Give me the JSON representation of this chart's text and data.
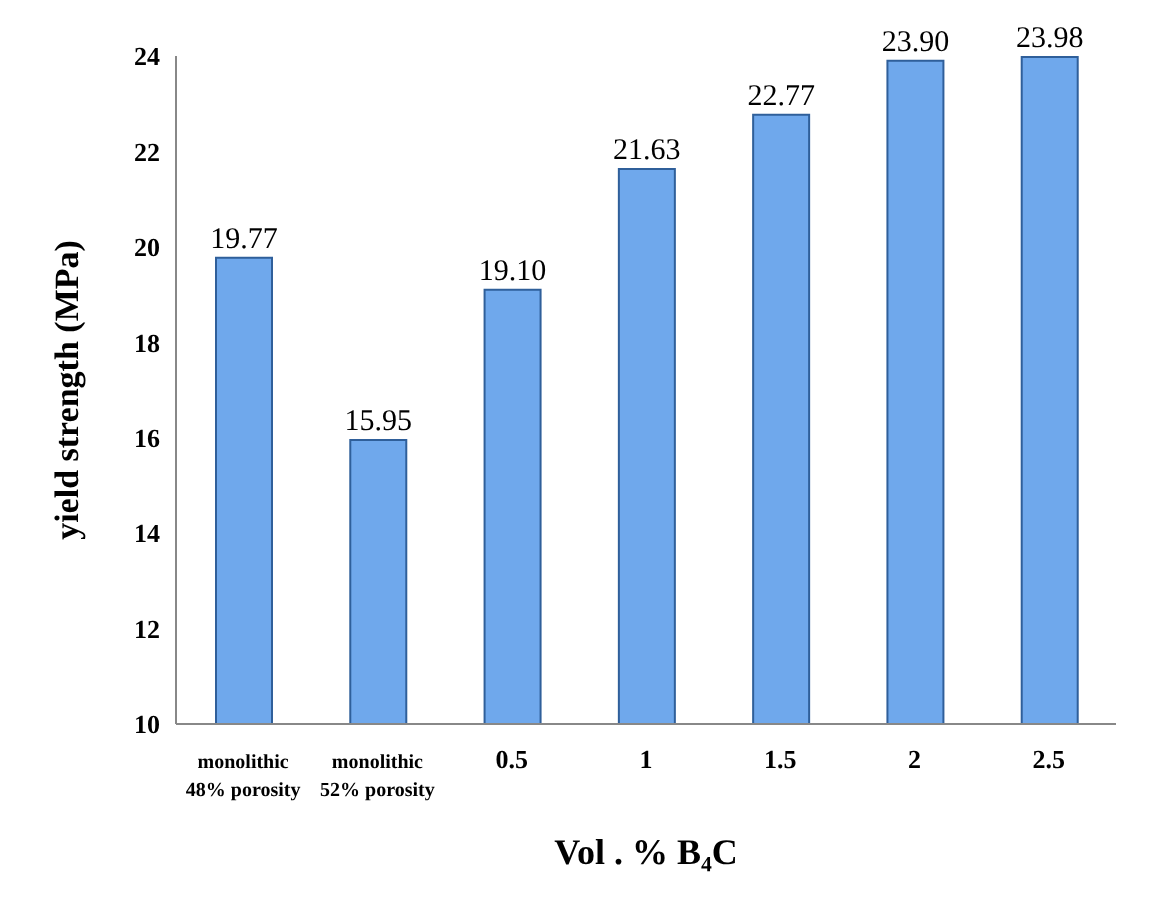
{
  "chart_data": {
    "type": "bar",
    "xlabel": "Vol . % B₄C",
    "ylabel": "yield strength (MPa)",
    "categories": [
      "monolithic 48% porosity",
      "monolithic 52% porosity",
      "0.5",
      "1",
      "1.5",
      "2",
      "2.5"
    ],
    "values": [
      19.77,
      15.95,
      19.1,
      21.63,
      22.77,
      23.9,
      23.98
    ],
    "value_labels": [
      "19.77",
      "15.95",
      "19.10",
      "21.63",
      "22.77",
      "23.90",
      "23.98"
    ],
    "color": "#6fa8ec",
    "ylim": [
      10,
      24
    ],
    "yticks": [
      10,
      12,
      14,
      16,
      18,
      20,
      22,
      24
    ]
  }
}
